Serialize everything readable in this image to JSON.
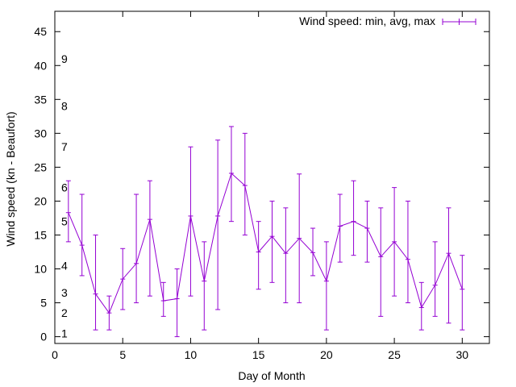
{
  "chart_data": {
    "type": "line",
    "title": "",
    "xlabel": "Day of Month",
    "ylabel": "Wind speed (kn - Beaufort)",
    "xlim": [
      0,
      32
    ],
    "ylim": [
      -1,
      48
    ],
    "x_ticks": [
      0,
      5,
      10,
      15,
      20,
      25,
      30
    ],
    "y_ticks": [
      0,
      5,
      10,
      15,
      20,
      25,
      30,
      35,
      40,
      45
    ],
    "grid": false,
    "legend": {
      "position": "top-right",
      "label": "Wind speed: min, avg, max"
    },
    "series_color": "#9400d3",
    "beaufort_labels": [
      {
        "label": "1",
        "y": 0.5
      },
      {
        "label": "2",
        "y": 3.5
      },
      {
        "label": "3",
        "y": 6.5
      },
      {
        "label": "4",
        "y": 10.5
      },
      {
        "label": "5",
        "y": 17
      },
      {
        "label": "6",
        "y": 22
      },
      {
        "label": "7",
        "y": 28
      },
      {
        "label": "8",
        "y": 34
      },
      {
        "label": "9",
        "y": 41
      }
    ],
    "series": [
      {
        "name": "Wind speed: min, avg, max",
        "x": [
          1,
          2,
          3,
          4,
          5,
          6,
          7,
          8,
          9,
          10,
          11,
          12,
          13,
          14,
          15,
          16,
          17,
          18,
          19,
          20,
          21,
          22,
          23,
          24,
          25,
          26,
          27,
          28,
          29,
          30
        ],
        "avg": [
          18.3,
          13.5,
          6.3,
          3.5,
          8.5,
          10.8,
          17.3,
          5.3,
          5.6,
          17.8,
          8.2,
          17.8,
          24.1,
          22.3,
          12.5,
          14.8,
          12.3,
          14.5,
          12.4,
          8.2,
          16.3,
          17.0,
          16.0,
          11.8,
          14.0,
          11.4,
          4.3,
          7.6,
          12.3,
          7.0
        ],
        "min": [
          14,
          9,
          1,
          1,
          4,
          5,
          6,
          3,
          0,
          6,
          1,
          4,
          17,
          15,
          7,
          8,
          5,
          5,
          9,
          1,
          11,
          12,
          11,
          3,
          6,
          5,
          1,
          3,
          2,
          1
        ],
        "max": [
          23,
          21,
          15,
          6,
          13,
          21,
          23,
          8,
          10,
          28,
          14,
          29,
          31,
          30,
          17,
          20,
          19,
          24,
          16,
          14,
          21,
          23,
          20,
          19,
          22,
          20,
          8,
          14,
          19,
          12
        ]
      }
    ]
  }
}
